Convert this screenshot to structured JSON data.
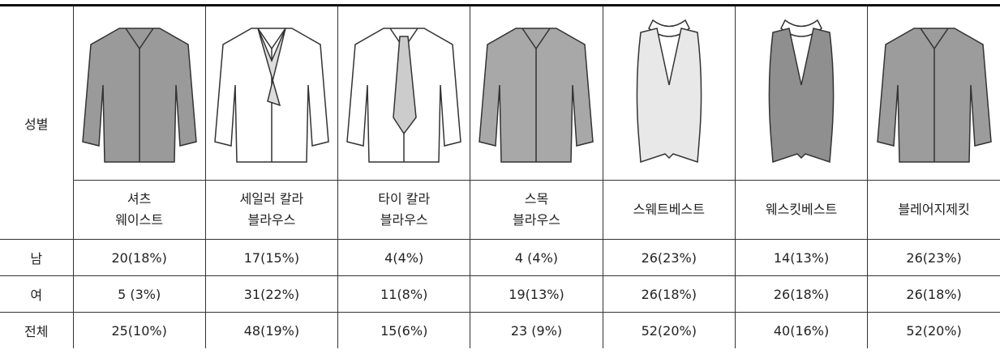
{
  "table": {
    "header": {
      "corner": "성별",
      "columns": [
        [
          "셔츠",
          "웨이스트"
        ],
        [
          "세일러 칼라",
          "블라우스"
        ],
        [
          "타이 칼라",
          "블라우스"
        ],
        [
          "스목",
          "블라우스"
        ],
        [
          "스웨트베스트"
        ],
        [
          "웨스킷베스트"
        ],
        [
          "블레어지제킷"
        ]
      ]
    },
    "rows": [
      [
        "남",
        "20(18%)",
        "17(15%)",
        "4(4%)",
        "4 (4%)",
        "26(23%)",
        "14(13%)",
        "26(23%)"
      ],
      [
        "여",
        "5 (3%)",
        "31(22%)",
        "11(8%)",
        "19(13%)",
        "26(18%)",
        "26(18%)",
        "26(18%)"
      ],
      [
        "전체",
        "25(10%)",
        "48(19%)",
        "15(6%)",
        "23 (9%)",
        "52(20%)",
        "40(16%)",
        "52(20%)"
      ]
    ]
  }
}
